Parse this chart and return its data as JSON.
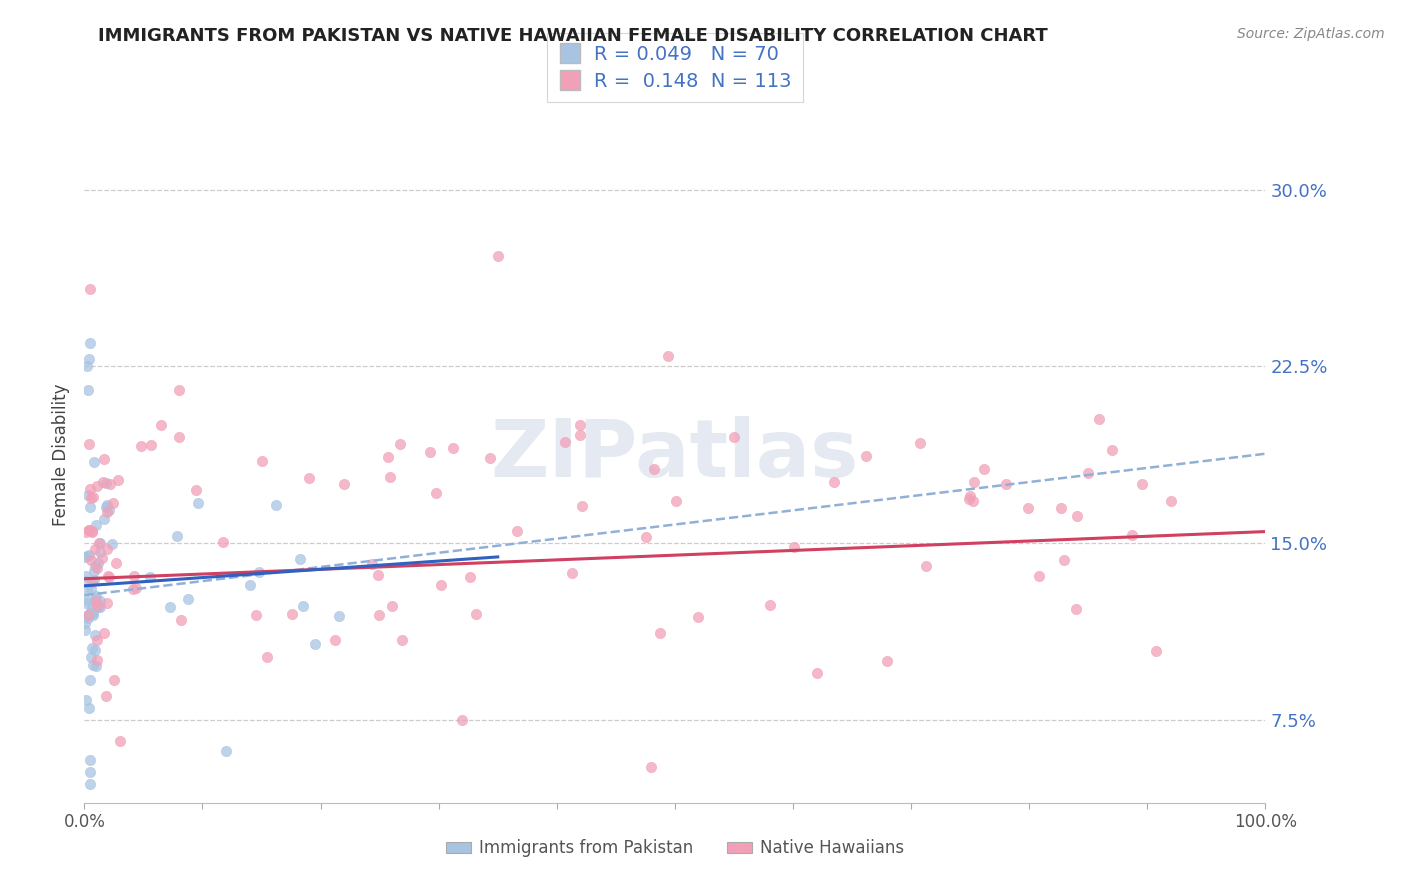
{
  "title": "IMMIGRANTS FROM PAKISTAN VS NATIVE HAWAIIAN FEMALE DISABILITY CORRELATION CHART",
  "source": "Source: ZipAtlas.com",
  "ylabel": "Female Disability",
  "xlim": [
    0.0,
    1.0
  ],
  "ylim": [
    0.04,
    0.33
  ],
  "ytick_vals": [
    0.075,
    0.15,
    0.225,
    0.3
  ],
  "ytick_labels": [
    "7.5%",
    "15.0%",
    "22.5%",
    "30.0%"
  ],
  "blue_R": "0.049",
  "blue_N": "70",
  "pink_R": "0.148",
  "pink_N": "113",
  "blue_color": "#a8c4e2",
  "pink_color": "#f2a0b8",
  "blue_line_color": "#3060c0",
  "pink_line_color": "#d04060",
  "dashed_line_color": "#90b0d8",
  "legend_label_blue": "Immigrants from Pakistan",
  "legend_label_pink": "Native Hawaiians",
  "watermark": "ZIPatlas",
  "title_color": "#222222",
  "axis_label_color": "#444444",
  "tick_color": "#4472c4",
  "grid_color": "#cccccc",
  "source_color": "#888888"
}
